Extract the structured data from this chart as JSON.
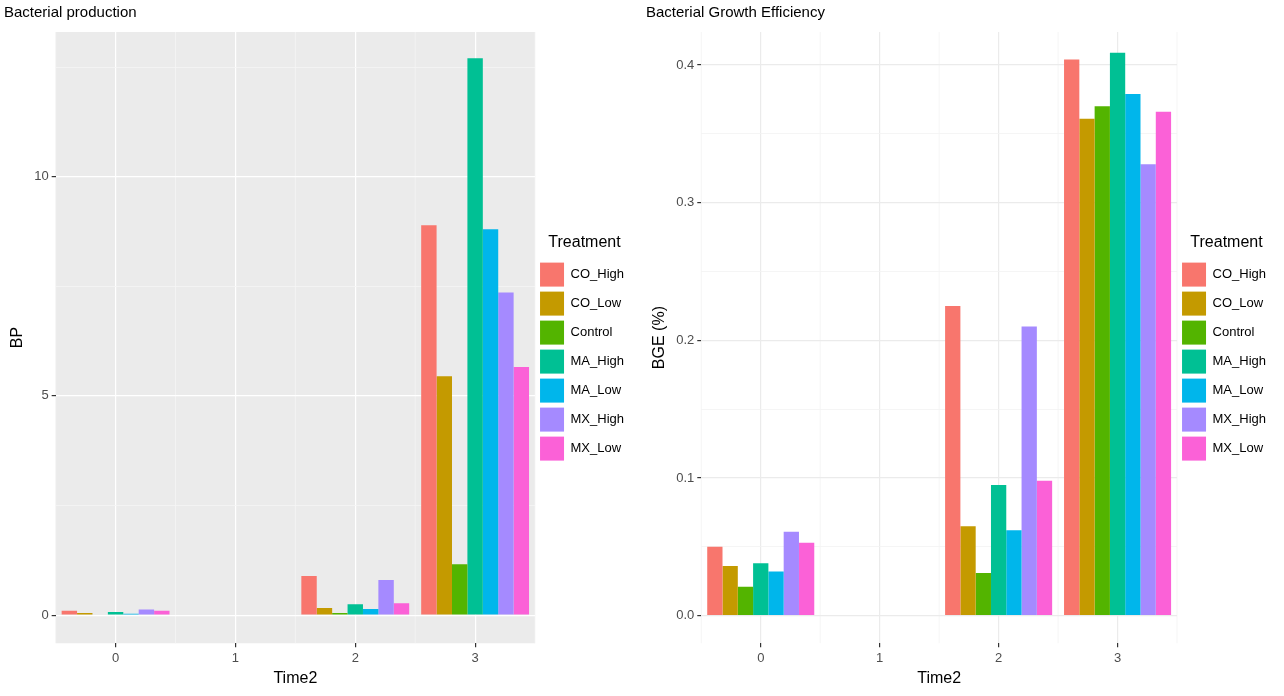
{
  "chart_data": [
    {
      "type": "bar",
      "title": "Bacterial production",
      "xlabel": "Time2",
      "ylabel": "BP",
      "legend_title": "Treatment",
      "legend": "right",
      "grid": true,
      "categories": [
        "0",
        "1",
        "2",
        "3"
      ],
      "ylim": [
        -0.64,
        13.3
      ],
      "yticks": [
        0,
        {
          "value": 2.5,
          "label": null
        },
        5,
        {
          "value": 7.5,
          "label": null
        },
        10,
        {
          "value": 12.5,
          "label": null
        }
      ],
      "series": [
        {
          "name": "CO_High",
          "color": "#f8766d",
          "values": [
            0.1,
            null,
            0.89,
            8.89
          ]
        },
        {
          "name": "CO_Low",
          "color": "#c49a00",
          "values": [
            0.05,
            null,
            0.16,
            5.45
          ]
        },
        {
          "name": "Control",
          "color": "#53b400",
          "values": [
            0,
            null,
            0.05,
            1.16
          ]
        },
        {
          "name": "MA_High",
          "color": "#00c094",
          "values": [
            0.07,
            null,
            0.25,
            12.7
          ]
        },
        {
          "name": "MA_Low",
          "color": "#00b6eb",
          "values": [
            0.03,
            null,
            0.14,
            8.8
          ]
        },
        {
          "name": "MX_High",
          "color": "#a58aff",
          "values": [
            0.13,
            null,
            0.8,
            7.36
          ]
        },
        {
          "name": "MX_Low",
          "color": "#fb61d7",
          "values": [
            0.1,
            null,
            0.27,
            5.66
          ]
        }
      ]
    },
    {
      "type": "bar",
      "title": "Bacterial Growth Efficiency",
      "xlabel": "Time2",
      "ylabel": "BGE (%)",
      "legend_title": "Treatment",
      "legend": "right",
      "grid": true,
      "categories": [
        "0",
        "1",
        "2",
        "3"
      ],
      "ylim": [
        -0.02,
        0.424
      ],
      "yticks": [
        {
          "value": 0,
          "label": "0.0"
        },
        {
          "value": 0.05,
          "label": null
        },
        0.1,
        {
          "value": 0.15,
          "label": null
        },
        0.2,
        {
          "value": 0.25,
          "label": null
        },
        0.3,
        {
          "value": 0.35,
          "label": null
        },
        0.4
      ],
      "series": [
        {
          "name": "CO_High",
          "color": "#f8766d",
          "values": [
            0.05,
            null,
            0.225,
            0.404
          ]
        },
        {
          "name": "CO_Low",
          "color": "#c49a00",
          "values": [
            0.036,
            null,
            0.065,
            0.361
          ]
        },
        {
          "name": "Control",
          "color": "#53b400",
          "values": [
            0.021,
            null,
            0.031,
            0.37
          ]
        },
        {
          "name": "MA_High",
          "color": "#00c094",
          "values": [
            0.038,
            null,
            0.095,
            0.409
          ]
        },
        {
          "name": "MA_Low",
          "color": "#00b6eb",
          "values": [
            0.032,
            null,
            0.062,
            0.379
          ]
        },
        {
          "name": "MX_High",
          "color": "#a58aff",
          "values": [
            0.061,
            null,
            0.21,
            0.328
          ]
        },
        {
          "name": "MX_Low",
          "color": "#fb61d7",
          "values": [
            0.053,
            null,
            0.098,
            0.366
          ]
        }
      ]
    }
  ]
}
